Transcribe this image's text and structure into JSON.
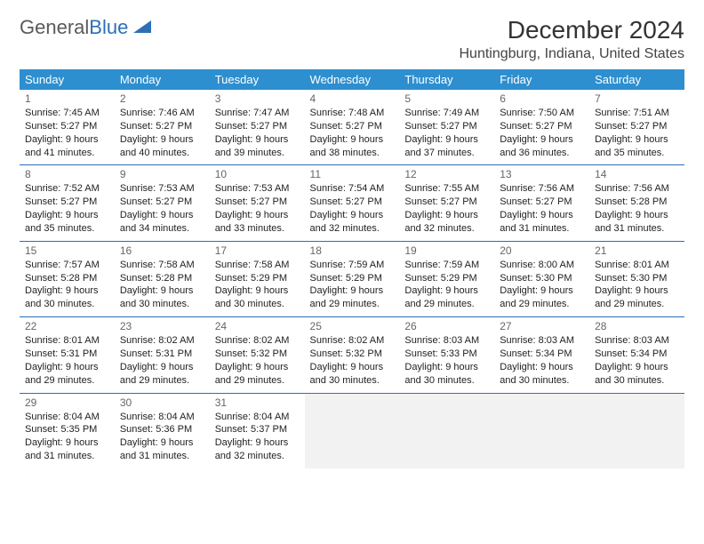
{
  "logo": {
    "word1": "General",
    "word2": "Blue",
    "shape_color": "#2d6fb7",
    "word1_color": "#5a5a5a"
  },
  "title": "December 2024",
  "location": "Huntingburg, Indiana, United States",
  "header_bg": "#2d8fcf",
  "border_color": "#2d6fb7",
  "day_headers": [
    "Sunday",
    "Monday",
    "Tuesday",
    "Wednesday",
    "Thursday",
    "Friday",
    "Saturday"
  ],
  "weeks": [
    [
      {
        "n": "1",
        "sr": "Sunrise: 7:45 AM",
        "ss": "Sunset: 5:27 PM",
        "d1": "Daylight: 9 hours",
        "d2": "and 41 minutes."
      },
      {
        "n": "2",
        "sr": "Sunrise: 7:46 AM",
        "ss": "Sunset: 5:27 PM",
        "d1": "Daylight: 9 hours",
        "d2": "and 40 minutes."
      },
      {
        "n": "3",
        "sr": "Sunrise: 7:47 AM",
        "ss": "Sunset: 5:27 PM",
        "d1": "Daylight: 9 hours",
        "d2": "and 39 minutes."
      },
      {
        "n": "4",
        "sr": "Sunrise: 7:48 AM",
        "ss": "Sunset: 5:27 PM",
        "d1": "Daylight: 9 hours",
        "d2": "and 38 minutes."
      },
      {
        "n": "5",
        "sr": "Sunrise: 7:49 AM",
        "ss": "Sunset: 5:27 PM",
        "d1": "Daylight: 9 hours",
        "d2": "and 37 minutes."
      },
      {
        "n": "6",
        "sr": "Sunrise: 7:50 AM",
        "ss": "Sunset: 5:27 PM",
        "d1": "Daylight: 9 hours",
        "d2": "and 36 minutes."
      },
      {
        "n": "7",
        "sr": "Sunrise: 7:51 AM",
        "ss": "Sunset: 5:27 PM",
        "d1": "Daylight: 9 hours",
        "d2": "and 35 minutes."
      }
    ],
    [
      {
        "n": "8",
        "sr": "Sunrise: 7:52 AM",
        "ss": "Sunset: 5:27 PM",
        "d1": "Daylight: 9 hours",
        "d2": "and 35 minutes."
      },
      {
        "n": "9",
        "sr": "Sunrise: 7:53 AM",
        "ss": "Sunset: 5:27 PM",
        "d1": "Daylight: 9 hours",
        "d2": "and 34 minutes."
      },
      {
        "n": "10",
        "sr": "Sunrise: 7:53 AM",
        "ss": "Sunset: 5:27 PM",
        "d1": "Daylight: 9 hours",
        "d2": "and 33 minutes."
      },
      {
        "n": "11",
        "sr": "Sunrise: 7:54 AM",
        "ss": "Sunset: 5:27 PM",
        "d1": "Daylight: 9 hours",
        "d2": "and 32 minutes."
      },
      {
        "n": "12",
        "sr": "Sunrise: 7:55 AM",
        "ss": "Sunset: 5:27 PM",
        "d1": "Daylight: 9 hours",
        "d2": "and 32 minutes."
      },
      {
        "n": "13",
        "sr": "Sunrise: 7:56 AM",
        "ss": "Sunset: 5:27 PM",
        "d1": "Daylight: 9 hours",
        "d2": "and 31 minutes."
      },
      {
        "n": "14",
        "sr": "Sunrise: 7:56 AM",
        "ss": "Sunset: 5:28 PM",
        "d1": "Daylight: 9 hours",
        "d2": "and 31 minutes."
      }
    ],
    [
      {
        "n": "15",
        "sr": "Sunrise: 7:57 AM",
        "ss": "Sunset: 5:28 PM",
        "d1": "Daylight: 9 hours",
        "d2": "and 30 minutes."
      },
      {
        "n": "16",
        "sr": "Sunrise: 7:58 AM",
        "ss": "Sunset: 5:28 PM",
        "d1": "Daylight: 9 hours",
        "d2": "and 30 minutes."
      },
      {
        "n": "17",
        "sr": "Sunrise: 7:58 AM",
        "ss": "Sunset: 5:29 PM",
        "d1": "Daylight: 9 hours",
        "d2": "and 30 minutes."
      },
      {
        "n": "18",
        "sr": "Sunrise: 7:59 AM",
        "ss": "Sunset: 5:29 PM",
        "d1": "Daylight: 9 hours",
        "d2": "and 29 minutes."
      },
      {
        "n": "19",
        "sr": "Sunrise: 7:59 AM",
        "ss": "Sunset: 5:29 PM",
        "d1": "Daylight: 9 hours",
        "d2": "and 29 minutes."
      },
      {
        "n": "20",
        "sr": "Sunrise: 8:00 AM",
        "ss": "Sunset: 5:30 PM",
        "d1": "Daylight: 9 hours",
        "d2": "and 29 minutes."
      },
      {
        "n": "21",
        "sr": "Sunrise: 8:01 AM",
        "ss": "Sunset: 5:30 PM",
        "d1": "Daylight: 9 hours",
        "d2": "and 29 minutes."
      }
    ],
    [
      {
        "n": "22",
        "sr": "Sunrise: 8:01 AM",
        "ss": "Sunset: 5:31 PM",
        "d1": "Daylight: 9 hours",
        "d2": "and 29 minutes."
      },
      {
        "n": "23",
        "sr": "Sunrise: 8:02 AM",
        "ss": "Sunset: 5:31 PM",
        "d1": "Daylight: 9 hours",
        "d2": "and 29 minutes."
      },
      {
        "n": "24",
        "sr": "Sunrise: 8:02 AM",
        "ss": "Sunset: 5:32 PM",
        "d1": "Daylight: 9 hours",
        "d2": "and 29 minutes."
      },
      {
        "n": "25",
        "sr": "Sunrise: 8:02 AM",
        "ss": "Sunset: 5:32 PM",
        "d1": "Daylight: 9 hours",
        "d2": "and 30 minutes."
      },
      {
        "n": "26",
        "sr": "Sunrise: 8:03 AM",
        "ss": "Sunset: 5:33 PM",
        "d1": "Daylight: 9 hours",
        "d2": "and 30 minutes."
      },
      {
        "n": "27",
        "sr": "Sunrise: 8:03 AM",
        "ss": "Sunset: 5:34 PM",
        "d1": "Daylight: 9 hours",
        "d2": "and 30 minutes."
      },
      {
        "n": "28",
        "sr": "Sunrise: 8:03 AM",
        "ss": "Sunset: 5:34 PM",
        "d1": "Daylight: 9 hours",
        "d2": "and 30 minutes."
      }
    ],
    [
      {
        "n": "29",
        "sr": "Sunrise: 8:04 AM",
        "ss": "Sunset: 5:35 PM",
        "d1": "Daylight: 9 hours",
        "d2": "and 31 minutes."
      },
      {
        "n": "30",
        "sr": "Sunrise: 8:04 AM",
        "ss": "Sunset: 5:36 PM",
        "d1": "Daylight: 9 hours",
        "d2": "and 31 minutes."
      },
      {
        "n": "31",
        "sr": "Sunrise: 8:04 AM",
        "ss": "Sunset: 5:37 PM",
        "d1": "Daylight: 9 hours",
        "d2": "and 32 minutes."
      },
      null,
      null,
      null,
      null
    ]
  ]
}
